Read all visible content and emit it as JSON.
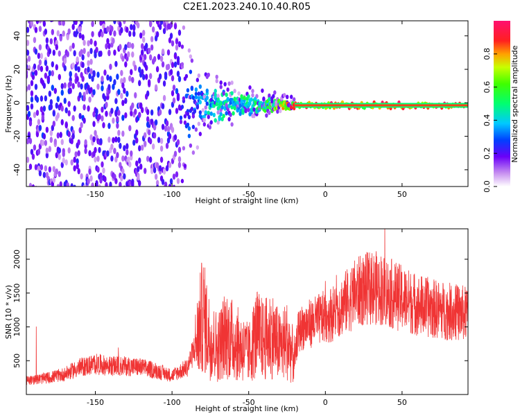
{
  "title": "C2E1.2023.240.10.40.R05",
  "chart_data": [
    {
      "type": "heatmap",
      "xlabel": "Height of straight line (km)",
      "ylabel": "Frequency (Hz)",
      "xlim": [
        -195,
        93
      ],
      "ylim": [
        -50,
        49
      ],
      "xticks": [
        -150,
        -100,
        -50,
        0,
        50
      ],
      "yticks": [
        -40,
        -20,
        0,
        20,
        40
      ],
      "colorbar": {
        "label": "Normalized spectral amplitude",
        "range": [
          0,
          1
        ],
        "ticks": [
          0.0,
          0.2,
          0.4,
          0.6,
          0.8
        ]
      },
      "description_points": [
        {
          "x": -150,
          "spread_hz": 50,
          "amp": 0.15
        },
        {
          "x": -100,
          "spread_hz": 40,
          "amp": 0.2
        },
        {
          "x": -80,
          "spread_hz": 12,
          "amp": 0.45
        },
        {
          "x": -60,
          "spread_hz": 8,
          "amp": 0.55
        },
        {
          "x": -40,
          "spread_hz": 5,
          "amp": 0.6
        },
        {
          "x": -20,
          "spread_hz": 2,
          "amp": 1.0
        },
        {
          "x": 0,
          "spread_hz": 2,
          "amp": 1.0
        },
        {
          "x": 50,
          "spread_hz": 2,
          "amp": 1.0
        },
        {
          "x": 90,
          "spread_hz": 2,
          "amp": 1.0
        }
      ],
      "line_frequency_hz": -1.5
    },
    {
      "type": "line",
      "xlabel": "Height of straight line (km)",
      "ylabel": "SNR (10 * v/v)",
      "xlim": [
        -195,
        93
      ],
      "ylim": [
        0,
        2450
      ],
      "xticks": [
        -150,
        -100,
        -50,
        0,
        50
      ],
      "yticks": [
        500,
        1000,
        1500,
        2000
      ],
      "color": "#f03434",
      "series": [
        {
          "x": [
            -195,
            -180,
            -170,
            -160,
            -150,
            -140,
            -130,
            -120,
            -110,
            -100,
            -90,
            -85,
            -80,
            -75,
            -70,
            -65,
            -60,
            -55,
            -50,
            -45,
            -40,
            -35,
            -30,
            -25,
            -20,
            -18,
            -15,
            -10,
            -5,
            0,
            5,
            10,
            15,
            20,
            25,
            30,
            35,
            40,
            50,
            60,
            70,
            80,
            90,
            93
          ],
          "y": [
            200,
            250,
            300,
            400,
            450,
            420,
            420,
            400,
            350,
            280,
            400,
            700,
            1200,
            800,
            700,
            900,
            800,
            700,
            600,
            900,
            800,
            900,
            700,
            800,
            500,
            900,
            1000,
            1050,
            1100,
            1150,
            1200,
            1300,
            1400,
            1500,
            1550,
            1580,
            1570,
            1520,
            1420,
            1330,
            1270,
            1230,
            1200,
            1180
          ]
        }
      ]
    }
  ]
}
